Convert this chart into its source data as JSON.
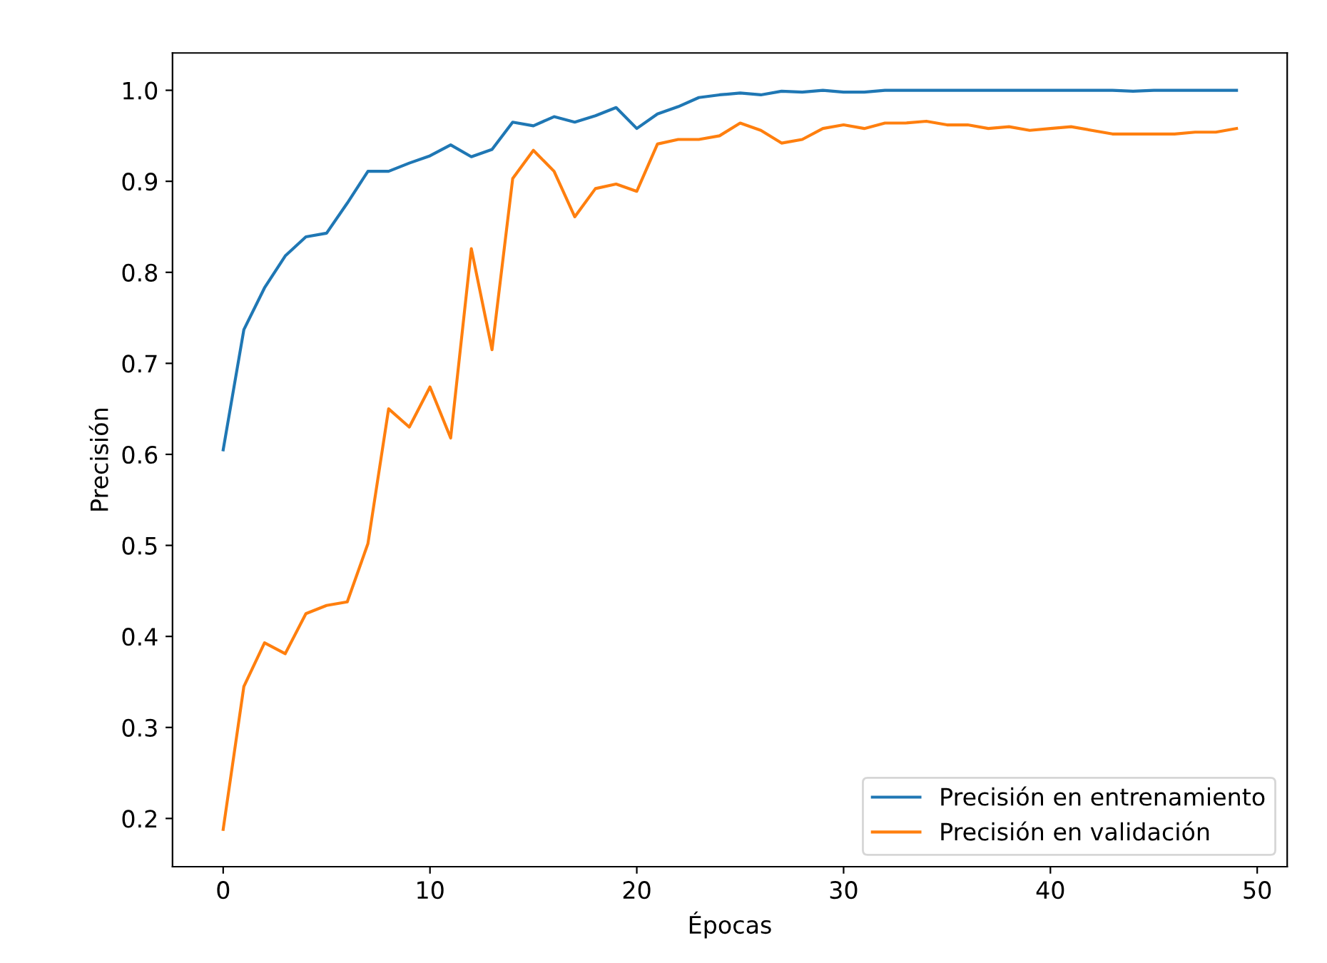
{
  "chart_data": {
    "type": "line",
    "xlabel": "Épocas",
    "ylabel": "Precisión",
    "x": [
      0,
      1,
      2,
      3,
      4,
      5,
      6,
      7,
      8,
      9,
      10,
      11,
      12,
      13,
      14,
      15,
      16,
      17,
      18,
      19,
      20,
      21,
      22,
      23,
      24,
      25,
      26,
      27,
      28,
      29,
      30,
      31,
      32,
      33,
      34,
      35,
      36,
      37,
      38,
      39,
      40,
      41,
      42,
      43,
      44,
      45,
      46,
      47,
      48,
      49
    ],
    "series": [
      {
        "name": "Precisión en entrenamiento",
        "color": "#1f77b4",
        "values": [
          0.605,
          0.737,
          0.783,
          0.818,
          0.839,
          0.843,
          0.876,
          0.911,
          0.911,
          0.92,
          0.928,
          0.94,
          0.927,
          0.935,
          0.965,
          0.961,
          0.971,
          0.965,
          0.972,
          0.981,
          0.958,
          0.974,
          0.982,
          0.992,
          0.995,
          0.997,
          0.995,
          0.999,
          0.998,
          1.0,
          0.998,
          0.998,
          1.0,
          1.0,
          1.0,
          1.0,
          1.0,
          1.0,
          1.0,
          1.0,
          1.0,
          1.0,
          1.0,
          1.0,
          0.999,
          1.0,
          1.0,
          1.0,
          1.0,
          1.0
        ]
      },
      {
        "name": "Precisión en validación",
        "color": "#ff7f0e",
        "values": [
          0.188,
          0.345,
          0.393,
          0.381,
          0.425,
          0.434,
          0.438,
          0.502,
          0.65,
          0.63,
          0.674,
          0.618,
          0.826,
          0.715,
          0.903,
          0.934,
          0.911,
          0.861,
          0.892,
          0.897,
          0.889,
          0.941,
          0.946,
          0.946,
          0.95,
          0.964,
          0.956,
          0.942,
          0.946,
          0.958,
          0.962,
          0.958,
          0.964,
          0.964,
          0.966,
          0.962,
          0.962,
          0.958,
          0.96,
          0.956,
          0.958,
          0.96,
          0.956,
          0.952,
          0.952,
          0.952,
          0.952,
          0.954,
          0.954,
          0.958
        ]
      }
    ],
    "xlim": [
      -2.45,
      51.45
    ],
    "ylim": [
      0.147,
      1.041
    ],
    "xticks": [
      0,
      10,
      20,
      30,
      40,
      50
    ],
    "yticks": [
      {
        "value": 0.2,
        "label": "0.2"
      },
      {
        "value": 0.3,
        "label": "0.3"
      },
      {
        "value": 0.4,
        "label": "0.4"
      },
      {
        "value": 0.5,
        "label": "0.5"
      },
      {
        "value": 0.6,
        "label": "0.6"
      },
      {
        "value": 0.7,
        "label": "0.7"
      },
      {
        "value": 0.8,
        "label": "0.8"
      },
      {
        "value": 0.9,
        "label": "0.9"
      },
      {
        "value": 1.0,
        "label": "1.0"
      }
    ],
    "legend": "lower right",
    "grid": false,
    "marker": "none",
    "line_style": "solid"
  }
}
